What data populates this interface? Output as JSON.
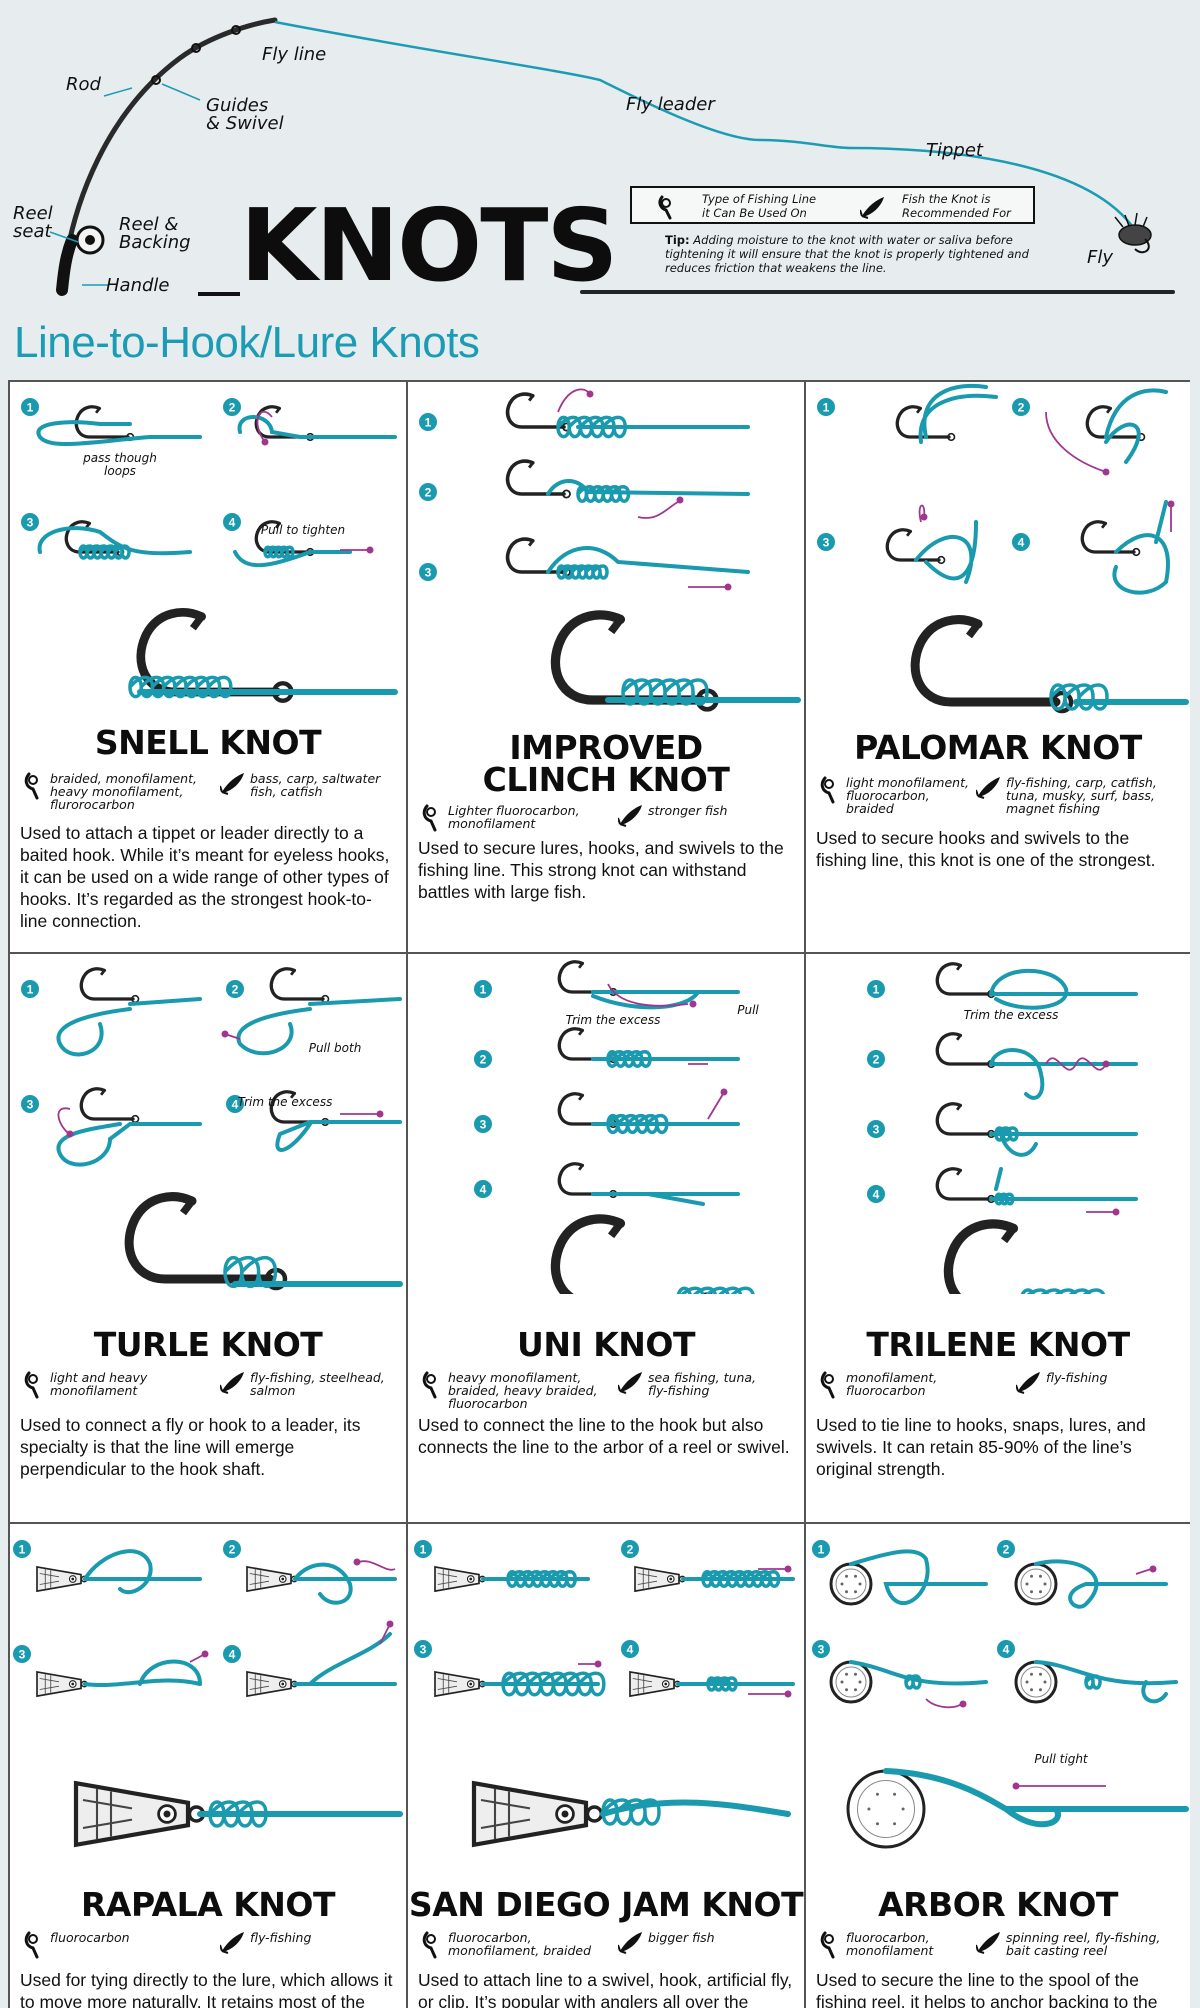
{
  "header": {
    "title": "KNOTS",
    "labels": {
      "rod": "Rod",
      "guides": "Guides\n& Swivel",
      "fly_line": "Fly line",
      "fly_leader": "Fly leader",
      "tippet": "Tippet",
      "fly": "Fly",
      "reel_seat": "Reel\nseat",
      "reel_backing": "Reel &\nBacking",
      "handle": "Handle"
    },
    "legend": {
      "line_type": "Type of Fishing Line\nit Can Be Used On",
      "fish": "Fish the Knot is\nRecommended For"
    },
    "tip_label": "Tip:",
    "tip_text": "Adding moisture to the knot with water or saliva before tightening it will ensure that the knot is properly tightened and reduces friction that weakens the line."
  },
  "section_title": "Line-to-Hook/Lure Knots",
  "colors": {
    "accent": "#1c9bb5",
    "rope": "#1a9aae",
    "arrow": "#a0368f",
    "ink": "#111111"
  },
  "icons": {
    "line_type": "line-spool-icon",
    "fish": "fish-icon"
  },
  "knots": [
    {
      "name": "SNELL KNOT",
      "lines": "braided, monofilament,\nheavy monofilament,\nflurorocarbon",
      "fish": "bass, carp, saltwater\nfish, catfish",
      "description": "Used to attach a tippet or leader directly to a baited hook. While it’s meant for eyeless hooks, it can be used on a wide range of other types of hooks. It’s regarded as the strongest hook-to-line connection.",
      "step_notes": [
        "pass though\nloops",
        "Pull to tighten"
      ]
    },
    {
      "name": "IMPROVED\nCLINCH KNOT",
      "lines": "Lighter fluorocarbon,\nmonofilament",
      "fish": "stronger fish",
      "description": "Used to secure lures, hooks, and swivels to the fishing line. This strong knot can withstand battles with large fish.",
      "step_notes": []
    },
    {
      "name": "PALOMAR KNOT",
      "lines": "light monofilament,\nfluorocarbon,\nbraided",
      "fish": "fly-fishing, carp, catfish,\ntuna, musky, surf, bass,\nmagnet fishing",
      "description": "Used to secure hooks and swivels to the fishing line, this knot is one of the strongest.",
      "step_notes": []
    },
    {
      "name": "TURLE KNOT",
      "lines": "light and heavy\nmonofilament",
      "fish": "fly-fishing, steelhead,\nsalmon",
      "description": "Used to connect a fly or hook to a leader, its specialty is that the line will emerge perpendicular to the hook shaft.",
      "step_notes": [
        "Pull both",
        "Trim the excess"
      ]
    },
    {
      "name": "UNI KNOT",
      "lines": "heavy monofilament,\nbraided, heavy braided,\nfluorocarbon",
      "fish": "sea fishing, tuna,\nfly-fishing",
      "description": "Used to connect the line to the hook but also connects the line to the arbor of a reel or swivel.",
      "step_notes": [
        "Pull",
        "Trim the excess"
      ]
    },
    {
      "name": "TRILENE KNOT",
      "lines": "monofilament,\nfluorocarbon",
      "fish": "fly-fishing",
      "description": "Used to tie line to hooks, snaps, lures, and swivels. It can retain 85-90% of the line’s original strength.",
      "step_notes": [
        "Trim the excess"
      ]
    },
    {
      "name": "RAPALA KNOT",
      "lines": "fluorocarbon",
      "fish": "fly-fishing",
      "description": "Used for tying directly to the lure, which allows it to move more naturally. It retains most of the line strength.",
      "step_notes": []
    },
    {
      "name": "SAN DIEGO JAM KNOT",
      "lines": "fluorocarbon,\nmonofilament, braided",
      "fish": "bigger fish",
      "description": "Used to attach line to a swivel, hook, artificial fly, or clip. It’s popular with anglers all over the world and is known to be an excellent knot.",
      "step_notes": []
    },
    {
      "name": "ARBOR KNOT",
      "lines": "fluorocarbon,\nmonofilament",
      "fish": "spinning reel, fly-fishing,\nbait casting reel",
      "description": "Used to secure the line to the spool of the fishing reel, it helps to anchor backing to the reel arbor for bigger fish.",
      "step_notes": [
        "Pull tight"
      ]
    }
  ]
}
